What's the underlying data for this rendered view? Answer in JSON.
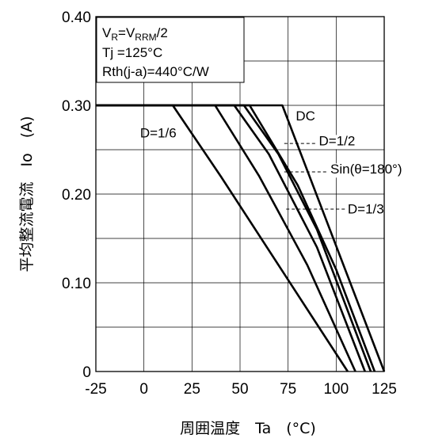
{
  "chart_data": {
    "type": "line",
    "title": "",
    "xlabel": "周囲温度　Ta　(°C)",
    "ylabel": "平均整流電流　Io　(A)",
    "xlim": [
      -25,
      125
    ],
    "ylim": [
      0,
      0.4
    ],
    "xticks": [
      -25,
      0,
      25,
      50,
      75,
      100,
      125
    ],
    "yticks": [
      0,
      0.1,
      0.2,
      0.3,
      0.4
    ],
    "xtick_labels": [
      "-25",
      "0",
      "25",
      "50",
      "75",
      "100",
      "125"
    ],
    "ytick_labels": [
      "0",
      "0.10",
      "0.20",
      "0.30",
      "0.40"
    ],
    "grid": true,
    "conditions": {
      "vr_main": "V",
      "vr_sub": "R",
      "vr_eq": "=V",
      "vrrm_sub": "RRM",
      "vr_tail": "/2",
      "tj": "Tj =125°C",
      "rth": "Rth(j-a)=440°C/W"
    },
    "series": [
      {
        "name": "DC",
        "x": [
          -25,
          72,
          125
        ],
        "y": [
          0.3,
          0.3,
          0.0
        ]
      },
      {
        "name": "Sin(θ=180°)",
        "x": [
          -25,
          52,
          70,
          90,
          118
        ],
        "y": [
          0.3,
          0.3,
          0.245,
          0.16,
          0.0
        ]
      },
      {
        "name": "D=1/2",
        "x": [
          -25,
          55,
          80,
          100,
          120
        ],
        "y": [
          0.3,
          0.3,
          0.21,
          0.115,
          0.0
        ]
      },
      {
        "name": "D=1/3",
        "x": [
          -25,
          47,
          65,
          90,
          115
        ],
        "y": [
          0.3,
          0.3,
          0.245,
          0.14,
          0.0
        ]
      },
      {
        "name": "D=1/6",
        "x": [
          -25,
          15,
          40,
          70,
          106
        ],
        "y": [
          0.3,
          0.3,
          0.22,
          0.12,
          0.0
        ]
      },
      {
        "name": "",
        "x": [
          37,
          60,
          85,
          110
        ],
        "y": [
          0.3,
          0.22,
          0.12,
          0.0
        ]
      }
    ],
    "annotations": [
      {
        "text": "DC",
        "x": 79,
        "y": 0.283,
        "leader": false
      },
      {
        "text": "D=1/2",
        "x": 91,
        "y": 0.255,
        "leader": true,
        "leader_from": [
          73,
          0.257
        ]
      },
      {
        "text": "Sin(θ=180°)",
        "x": 97,
        "y": 0.223,
        "leader": true,
        "leader_from": [
          73,
          0.225
        ]
      },
      {
        "text": "D=1/3",
        "x": 106,
        "y": 0.178,
        "leader": true,
        "leader_from": [
          74,
          0.183
        ]
      },
      {
        "text": "D=1/6",
        "x": -2,
        "y": 0.264,
        "leader": false
      }
    ]
  }
}
